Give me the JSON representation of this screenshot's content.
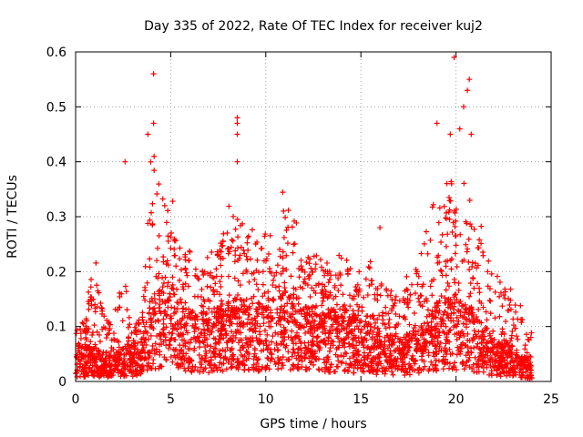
{
  "chart_data": {
    "type": "scatter",
    "title": "Day 335 of 2022, Rate Of TEC Index for receiver kuj2",
    "xlabel": "GPS time / hours",
    "ylabel": "ROTI / TECUs",
    "xlim": [
      0,
      25
    ],
    "ylim": [
      0,
      0.6
    ],
    "xticks": [
      0,
      5,
      10,
      15,
      20,
      25
    ],
    "yticks": [
      0,
      0.1,
      0.2,
      0.3,
      0.4,
      0.5,
      0.6
    ],
    "xtick_labels": [
      "0",
      "5",
      "10",
      "15",
      "20",
      "25"
    ],
    "ytick_labels": [
      "0",
      "0.1",
      "0.2",
      "0.3",
      "0.4",
      "0.5",
      "0.6"
    ],
    "grid": true,
    "marker": "+",
    "color": "#ff0000",
    "series": [
      {
        "name": "ROTI",
        "x_range": [
          0,
          24
        ],
        "envelope": [
          {
            "x": 0.0,
            "base": 0.04,
            "upper": 0.09
          },
          {
            "x": 0.5,
            "base": 0.04,
            "upper": 0.12
          },
          {
            "x": 1.0,
            "base": 0.04,
            "upper": 0.2
          },
          {
            "x": 1.5,
            "base": 0.03,
            "upper": 0.12
          },
          {
            "x": 2.0,
            "base": 0.03,
            "upper": 0.1
          },
          {
            "x": 2.5,
            "base": 0.04,
            "upper": 0.2
          },
          {
            "x": 3.0,
            "base": 0.04,
            "upper": 0.1
          },
          {
            "x": 3.5,
            "base": 0.05,
            "upper": 0.12
          },
          {
            "x": 4.0,
            "base": 0.1,
            "upper": 0.38
          },
          {
            "x": 4.5,
            "base": 0.12,
            "upper": 0.36
          },
          {
            "x": 5.0,
            "base": 0.12,
            "upper": 0.3
          },
          {
            "x": 5.5,
            "base": 0.1,
            "upper": 0.25
          },
          {
            "x": 6.0,
            "base": 0.08,
            "upper": 0.22
          },
          {
            "x": 7.0,
            "base": 0.08,
            "upper": 0.2
          },
          {
            "x": 8.0,
            "base": 0.1,
            "upper": 0.28
          },
          {
            "x": 9.0,
            "base": 0.09,
            "upper": 0.26
          },
          {
            "x": 10.0,
            "base": 0.09,
            "upper": 0.24
          },
          {
            "x": 11.0,
            "base": 0.11,
            "upper": 0.32
          },
          {
            "x": 12.0,
            "base": 0.09,
            "upper": 0.22
          },
          {
            "x": 13.0,
            "base": 0.08,
            "upper": 0.2
          },
          {
            "x": 14.0,
            "base": 0.09,
            "upper": 0.22
          },
          {
            "x": 15.0,
            "base": 0.07,
            "upper": 0.2
          },
          {
            "x": 16.0,
            "base": 0.06,
            "upper": 0.18
          },
          {
            "x": 17.0,
            "base": 0.05,
            "upper": 0.15
          },
          {
            "x": 18.0,
            "base": 0.06,
            "upper": 0.2
          },
          {
            "x": 19.0,
            "base": 0.09,
            "upper": 0.32
          },
          {
            "x": 20.0,
            "base": 0.1,
            "upper": 0.34
          },
          {
            "x": 21.0,
            "base": 0.08,
            "upper": 0.28
          },
          {
            "x": 22.0,
            "base": 0.05,
            "upper": 0.2
          },
          {
            "x": 23.0,
            "base": 0.04,
            "upper": 0.15
          },
          {
            "x": 24.0,
            "base": 0.02,
            "upper": 0.08
          }
        ],
        "notable_points": [
          {
            "x": 2.6,
            "y": 0.4
          },
          {
            "x": 4.1,
            "y": 0.56
          },
          {
            "x": 4.1,
            "y": 0.47
          },
          {
            "x": 3.8,
            "y": 0.45
          },
          {
            "x": 8.5,
            "y": 0.48
          },
          {
            "x": 8.5,
            "y": 0.47
          },
          {
            "x": 8.5,
            "y": 0.45
          },
          {
            "x": 8.5,
            "y": 0.4
          },
          {
            "x": 19.9,
            "y": 0.59
          },
          {
            "x": 20.7,
            "y": 0.55
          },
          {
            "x": 20.6,
            "y": 0.53
          },
          {
            "x": 20.4,
            "y": 0.5
          },
          {
            "x": 20.2,
            "y": 0.46
          },
          {
            "x": 19.0,
            "y": 0.47
          },
          {
            "x": 19.7,
            "y": 0.45
          },
          {
            "x": 20.8,
            "y": 0.45
          },
          {
            "x": 16.0,
            "y": 0.28
          }
        ]
      }
    ]
  }
}
